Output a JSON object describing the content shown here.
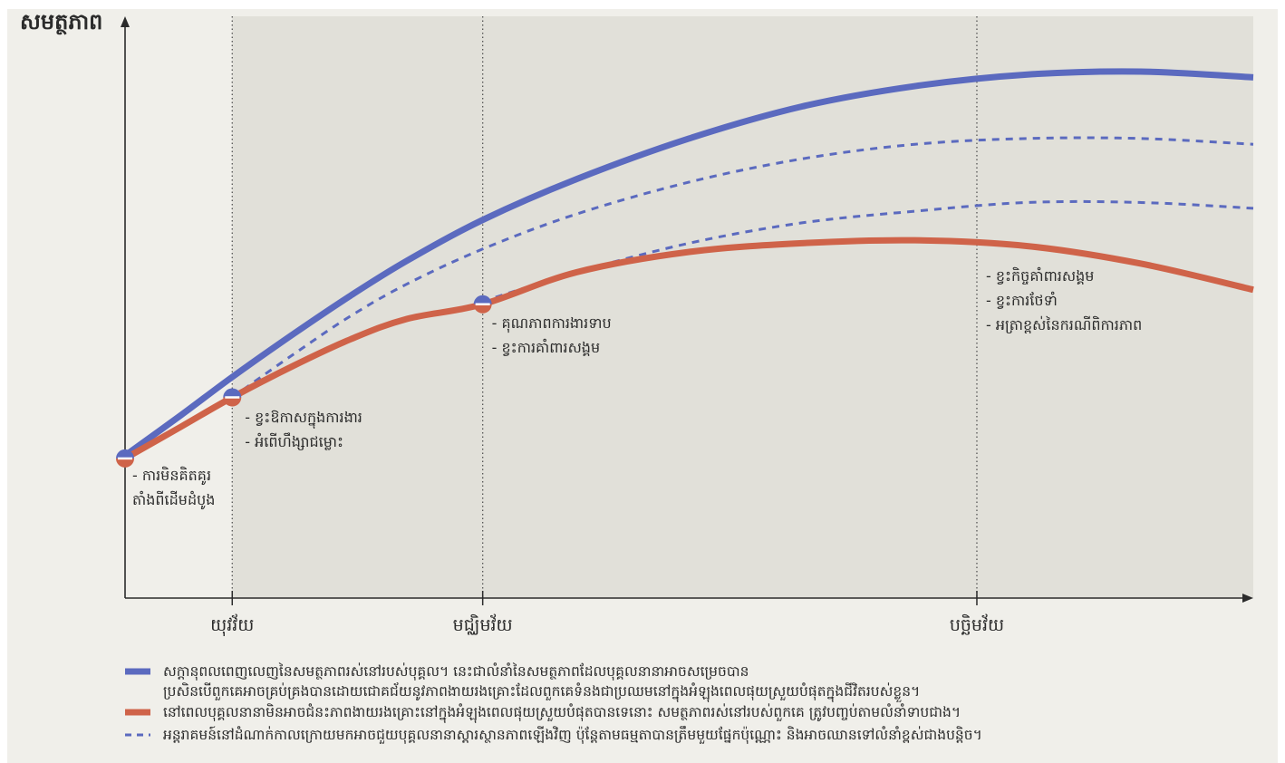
{
  "chart_data": {
    "type": "line",
    "ylabel": "សមត្ថភាព",
    "x_range": [
      0,
      100
    ],
    "y_range": [
      0,
      100
    ],
    "grid": false,
    "stages": [
      {
        "label": "",
        "x": 9.5,
        "notes": []
      },
      {
        "label": "យុវវ័យ",
        "x": 9.5,
        "notes": [
          "- ខ្វះឱកាសក្នុងការងារ",
          "- អំពើហឹង្សាជម្លោះ"
        ]
      },
      {
        "label": "មជ្ឈិមវ័យ",
        "x": 31.7,
        "notes": [
          "- គុណភាពការងារទាប",
          "- ខ្វះការគាំពារសង្គម"
        ]
      },
      {
        "label": "បច្ឆិមវ័យ",
        "x": 75.5,
        "notes": [
          "- ខ្វះកិច្ចគាំពារសង្គម",
          "- ខ្វះការថែទាំ",
          "- អត្រាខ្ពស់នៃករណីពិការភាព"
        ]
      }
    ],
    "origin_notes": [
      "- ការមិនគិតគូរ",
      "តាំងពីដើមដំបូង"
    ],
    "shaded_from_x": 9.5,
    "milestones": [
      {
        "x": 0,
        "y": 24
      },
      {
        "x": 9.5,
        "y": 34.5
      },
      {
        "x": 31.7,
        "y": 50.5
      }
    ],
    "series": [
      {
        "key": "potential",
        "style": "solid",
        "color": "#5b6abf",
        "x": [
          0,
          5,
          9.5,
          15,
          20,
          25,
          31.7,
          40,
          50,
          60,
          70,
          80,
          90,
          100
        ],
        "y": [
          24.5,
          31.5,
          38,
          45.5,
          52,
          58,
          65,
          72,
          79,
          84.5,
          88,
          90,
          90.5,
          89.5
        ]
      },
      {
        "key": "intervention-upper",
        "style": "dashed",
        "color": "#5b6abf",
        "x": [
          9.5,
          15,
          20,
          25,
          31.7,
          40,
          50,
          60,
          70,
          80,
          90,
          100
        ],
        "y": [
          34.5,
          42,
          48.5,
          54,
          60,
          66,
          71.5,
          75.5,
          78,
          79,
          79,
          78
        ]
      },
      {
        "key": "intervention-lower",
        "style": "dashed",
        "color": "#5b6abf",
        "x": [
          31.7,
          40,
          50,
          60,
          70,
          80,
          90,
          100
        ],
        "y": [
          51,
          56,
          61,
          64.5,
          66.5,
          68,
          68,
          67
        ]
      },
      {
        "key": "actual",
        "style": "solid",
        "color": "#cf6349",
        "x": [
          0,
          5,
          9.5,
          15,
          20,
          25,
          31.7,
          40,
          50,
          60,
          70,
          80,
          90,
          100
        ],
        "y": [
          24,
          29.5,
          34.5,
          40,
          44.5,
          48,
          50.5,
          56,
          59.5,
          61,
          61.5,
          60.5,
          57.5,
          53
        ]
      }
    ],
    "legend": [
      {
        "key": "potential",
        "style": "solid",
        "color": "#5b6abf",
        "lines": [
          "សក្តានុពលពេញលេញនៃសមត្ថភាពរស់នៅរបស់បុគ្គល។ នេះជាលំនាំនៃសមត្ថភាពដែលបុគ្គលនានាអាចសម្រេចបាន",
          "ប្រសិនបើពួកគេអាចគ្រប់គ្រងបានដោយជោគជ័យនូវភាពងាយរងគ្រោះដែលពួកគេទំនងជាប្រឈមនៅក្នុងអំឡុងពេលផុយស្រួយបំផុតក្នុងជីវិតរបស់ខ្លួន។"
        ]
      },
      {
        "key": "actual",
        "style": "solid",
        "color": "#cf6349",
        "lines": [
          "នៅពេលបុគ្គលនានាមិនអាចជំនះភាពងាយរងគ្រោះនៅក្នុងអំឡុងពេលផុយស្រួយបំផុតបានទេនោះ សមត្ថភាពរស់នៅរបស់ពួកគេ ត្រូវបញ្ចប់តាមលំនាំទាបជាង។"
        ]
      },
      {
        "key": "interventions",
        "style": "dashed",
        "color": "#5b6abf",
        "lines": [
          "អន្តរាគមន៍នៅដំណាក់កាលក្រោយមកអាចជួយបុគ្គលនានាស្តារស្ថានភាពឡើងវិញ ប៉ុន្តែតាមធម្មតាបានត្រឹមមួយផ្នែកប៉ុណ្ណោះ និងអាចឈានទៅលំនាំខ្ពស់ជាងបន្តិច។"
        ]
      }
    ],
    "colors": {
      "background": "#ffffff",
      "panel": "#f0efea",
      "shade": "#e1e0d9",
      "axis": "#2b2b2b",
      "blue": "#5b6abf",
      "red": "#cf6349"
    }
  }
}
